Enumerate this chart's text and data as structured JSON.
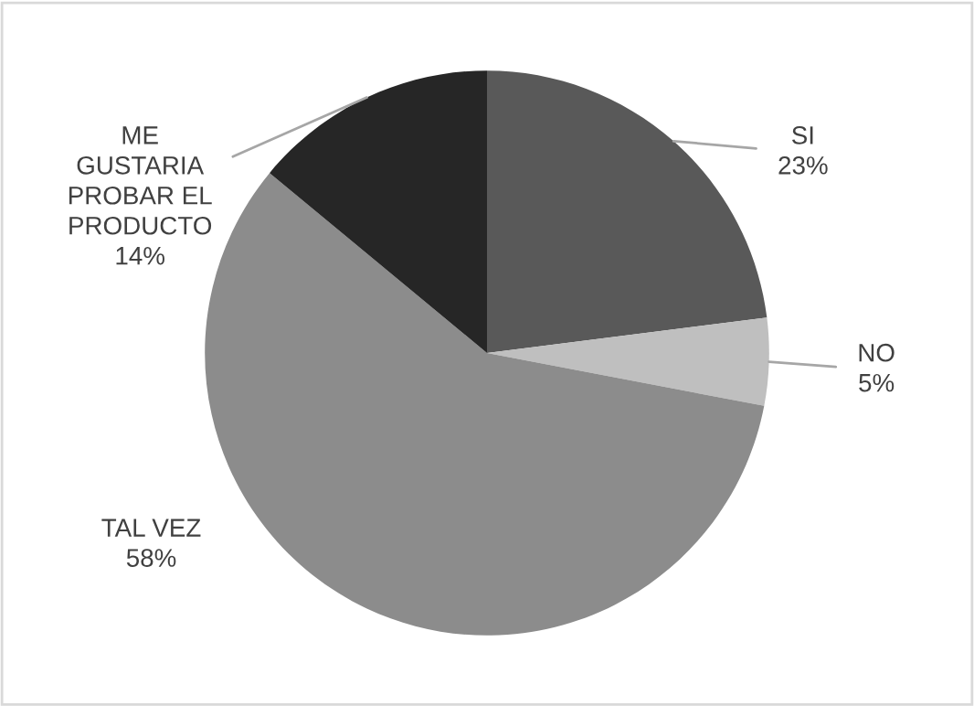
{
  "chart_data": {
    "type": "pie",
    "categories": [
      "SI",
      "NO",
      "TAL VEZ",
      "ME\nGUSTARIA\nPROBAR EL\nPRODUCTO"
    ],
    "values": [
      23,
      5,
      58,
      14
    ],
    "colors": [
      "#595959",
      "#bfbfbf",
      "#8c8c8c",
      "#262626"
    ],
    "value_labels": [
      "23%",
      "5%",
      "58%",
      "14%"
    ],
    "legend": false
  }
}
